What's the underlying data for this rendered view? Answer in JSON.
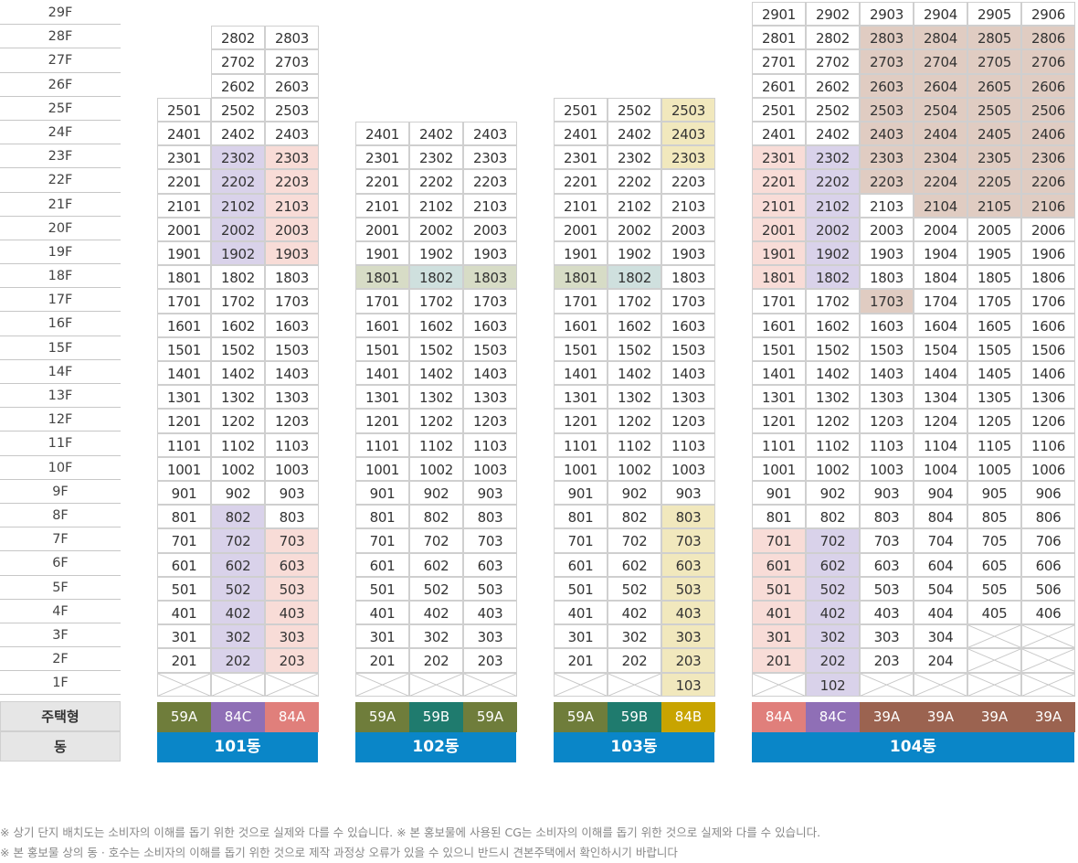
{
  "floors": [
    "29F",
    "28F",
    "27F",
    "26F",
    "25F",
    "24F",
    "23F",
    "22F",
    "21F",
    "20F",
    "19F",
    "18F",
    "17F",
    "16F",
    "15F",
    "14F",
    "13F",
    "12F",
    "11F",
    "10F",
    "9F",
    "8F",
    "7F",
    "6F",
    "5F",
    "4F",
    "3F",
    "2F",
    "1F"
  ],
  "labels": {
    "type": "주택형",
    "dong": "동"
  },
  "colors": {
    "purple_light": "#d9d2ea",
    "pink_light": "#f8dcd7",
    "green_light": "#d7dcc6",
    "teal_light": "#cfe0de",
    "yellow_light": "#f1e8bd",
    "brown_light": "#e0ccc2",
    "59A": "#6f7d3b",
    "59B": "#1f7b6e",
    "84A": "#e07f7b",
    "84B": "#c8a400",
    "84C": "#8f6fb6",
    "39A": "#9b6350",
    "dong": "#0a86c8"
  },
  "buildings": [
    {
      "name": "101동",
      "top_floor": 28,
      "types": [
        "59A",
        "84C",
        "84A"
      ],
      "lines": [
        1,
        2,
        3
      ],
      "line_max": [
        25,
        28,
        28
      ],
      "line_min": [
        2,
        2,
        2
      ],
      "crossed_1f": [
        true,
        true,
        true
      ]
    },
    {
      "name": "102동",
      "top_floor": 24,
      "types": [
        "59A",
        "59B",
        "59A"
      ],
      "lines": [
        1,
        2,
        3
      ],
      "line_max": [
        24,
        24,
        24
      ],
      "line_min": [
        2,
        2,
        2
      ],
      "crossed_1f": [
        true,
        true,
        true
      ]
    },
    {
      "name": "103동",
      "top_floor": 25,
      "types": [
        "59A",
        "59B",
        "84B"
      ],
      "lines": [
        1,
        2,
        3
      ],
      "line_max": [
        25,
        25,
        25
      ],
      "line_min": [
        2,
        2,
        1
      ],
      "crossed_1f": [
        true,
        true,
        false
      ]
    },
    {
      "name": "104동",
      "top_floor": 29,
      "types": [
        "84A",
        "84C",
        "39A",
        "39A",
        "39A",
        "39A"
      ],
      "lines": [
        1,
        2,
        3,
        4,
        5,
        6
      ],
      "line_max": [
        29,
        29,
        29,
        29,
        29,
        29
      ],
      "line_min": [
        2,
        1,
        2,
        2,
        4,
        4
      ],
      "crossed_1f": [
        true,
        false,
        true,
        true,
        true,
        true
      ]
    }
  ],
  "notes": [
    "※ 상기 단지 배치도는 소비자의 이해를 돕기 위한 것으로 실제와 다를 수 있습니다. ※ 본 홍보물에 사용된 CG는 소비자의 이해를 돕기 위한 것으로 실제와 다를 수 있습니다.",
    "※ 본 홍보물 상의 동 · 호수는 소비자의 이해를 돕기 위한 것으로 제작 과정상 오류가 있을 수 있으니 반드시 견본주택에서 확인하시기 바랍니다"
  ]
}
